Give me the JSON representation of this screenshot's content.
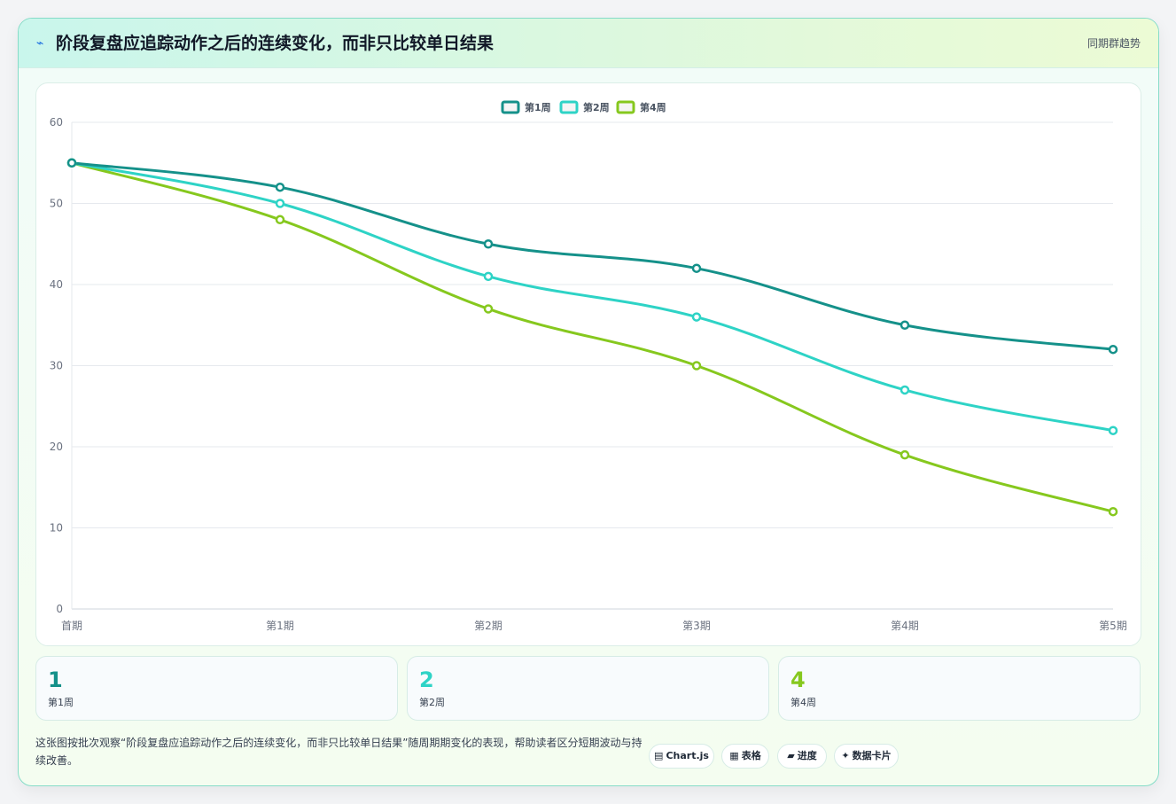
{
  "header": {
    "icon": "bolt-icon",
    "title": "阶段复盘应追踪动作之后的连续变化，而非只比较单日结果",
    "tag": "同期群趋势"
  },
  "chart_data": {
    "type": "line",
    "categories": [
      "首期",
      "第1期",
      "第2期",
      "第3期",
      "第4期",
      "第5期"
    ],
    "series": [
      {
        "name": "第1周",
        "color": "#15918a",
        "values": [
          55,
          52,
          45,
          42,
          35,
          32
        ]
      },
      {
        "name": "第2周",
        "color": "#2ed3c6",
        "values": [
          55,
          50,
          41,
          36,
          27,
          22
        ]
      },
      {
        "name": "第4周",
        "color": "#86c81e",
        "values": [
          55,
          48,
          37,
          30,
          19,
          12
        ]
      }
    ],
    "ylim": [
      0,
      60
    ],
    "yticks": [
      0,
      10,
      20,
      30,
      40,
      50,
      60
    ],
    "grid": true,
    "legend": "top-center",
    "curve": "smooth"
  },
  "stats": [
    {
      "value": "1",
      "label": "第1周",
      "color": "#15918a"
    },
    {
      "value": "2",
      "label": "第2周",
      "color": "#2ed3c6"
    },
    {
      "value": "4",
      "label": "第4周",
      "color": "#86c81e"
    }
  ],
  "footer": {
    "description": "这张图按批次观察“阶段复盘应追踪动作之后的连续变化，而非只比较单日结果”随周期期变化的表现，帮助读者区分短期波动与持续改善。",
    "chips": [
      {
        "icon": "▤",
        "icon_name": "chart-icon",
        "label": "Chart.js"
      },
      {
        "icon": "▦",
        "icon_name": "table-icon",
        "label": "表格"
      },
      {
        "icon": "▰",
        "icon_name": "progress-icon",
        "label": "进度"
      },
      {
        "icon": "✦",
        "icon_name": "sparkle-icon",
        "label": "数据卡片"
      }
    ]
  }
}
